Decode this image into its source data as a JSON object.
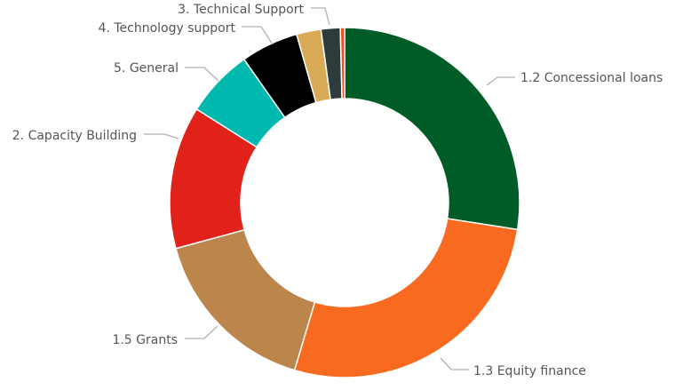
{
  "chart_data": {
    "type": "pie",
    "donut": true,
    "slices": [
      {
        "label": "1.2 Concessional loans",
        "value": 27.9,
        "color": "#005c26"
      },
      {
        "label": "1.3 Equity finance",
        "value": 27.6,
        "color": "#f76a1f"
      },
      {
        "label": "1.5 Grants",
        "value": 16.4,
        "color": "#bb854c"
      },
      {
        "label": "2. Capacity Building",
        "value": 13.4,
        "color": "#e1221b"
      },
      {
        "label": "5. General",
        "value": 6.4,
        "color": "#00b8ad"
      },
      {
        "label": "4. Technology support",
        "value": 5.4,
        "color": "#000000"
      },
      {
        "label": "",
        "value": 2.3,
        "color": "#d9aa55"
      },
      {
        "label": "3. Technical Support",
        "value": 1.8,
        "color": "#2e3b3c"
      },
      {
        "label": "",
        "value": 0.4,
        "color": "#f04e23"
      }
    ],
    "legend": "none"
  }
}
